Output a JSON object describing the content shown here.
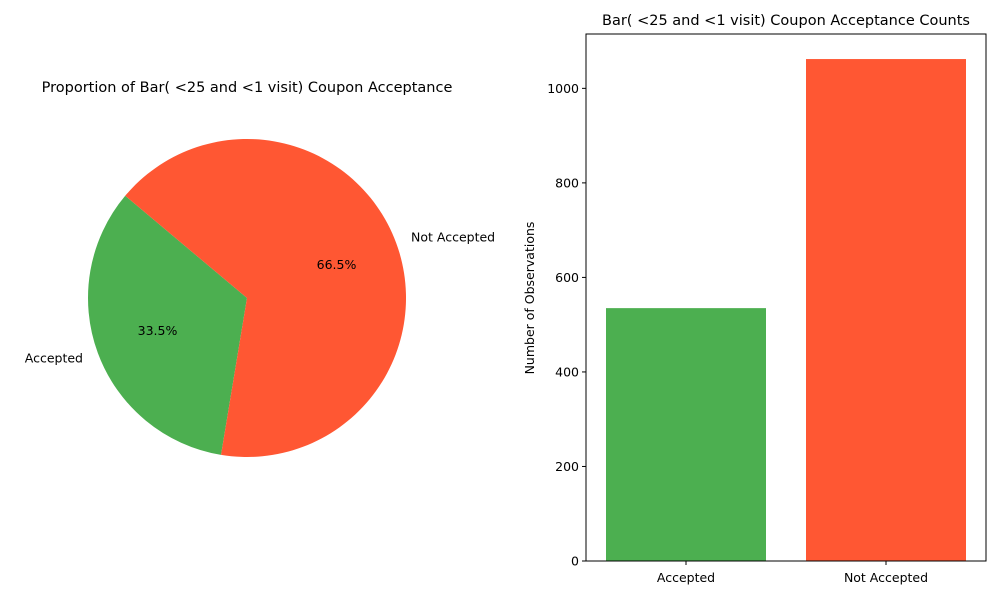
{
  "chart_data": [
    {
      "type": "pie",
      "title": "Proportion of Bar( <25 and <1 visit) Coupon Acceptance",
      "categories": [
        "Accepted",
        "Not Accepted"
      ],
      "values": [
        33.5,
        66.5
      ],
      "value_labels": [
        "33.5%",
        "66.5%"
      ],
      "colors": [
        "#4caf50",
        "#ff5733"
      ],
      "start_angle_deg": 140
    },
    {
      "type": "bar",
      "title": "Bar( <25 and <1 visit) Coupon Acceptance Counts",
      "categories": [
        "Accepted",
        "Not Accepted"
      ],
      "values": [
        535,
        1062
      ],
      "colors": [
        "#4caf50",
        "#ff5733"
      ],
      "xlabel": "",
      "ylabel": "Number of Observations",
      "ylim": [
        0,
        1115
      ],
      "yticks": [
        0,
        200,
        400,
        600,
        800,
        1000
      ],
      "grid": false
    }
  ]
}
